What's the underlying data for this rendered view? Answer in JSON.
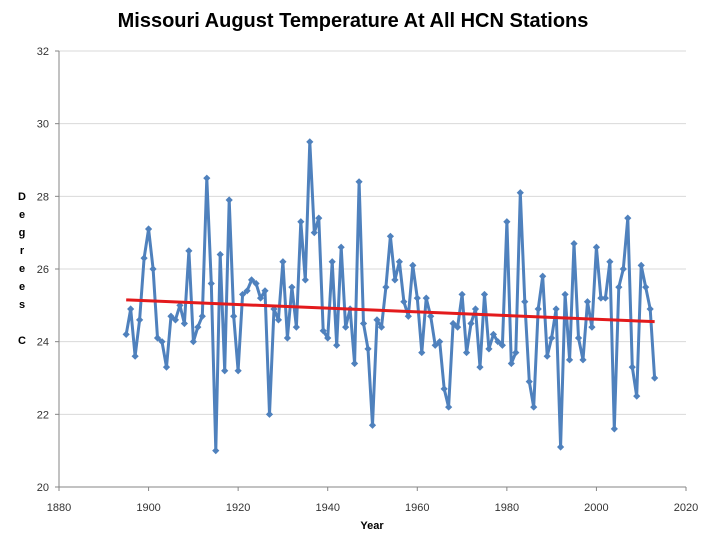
{
  "chart_data": {
    "type": "line",
    "title": "Missouri August Temperature At All HCN Stations",
    "xlabel": "Year",
    "ylabel": "Degrees C",
    "ylabel_letters": [
      "D",
      "e",
      "g",
      "r",
      "e",
      "e",
      "s",
      "",
      "C"
    ],
    "xlim": [
      1880,
      2020
    ],
    "ylim": [
      20,
      32
    ],
    "xticks": [
      1880,
      1900,
      1920,
      1940,
      1960,
      1980,
      2000,
      2020
    ],
    "yticks": [
      20,
      22,
      24,
      26,
      28,
      30,
      32
    ],
    "grid": "horizontal",
    "colors": {
      "series": "#4F81BD",
      "trend": "#E31A1C",
      "grid": "#D9D9D9",
      "axis": "#868686"
    },
    "series": [
      {
        "x": [
          1895,
          1896,
          1897,
          1898,
          1899,
          1900,
          1901,
          1902,
          1903,
          1904,
          1905,
          1906,
          1907,
          1908,
          1909,
          1910,
          1911,
          1912,
          1913,
          1914,
          1915,
          1916,
          1917,
          1918,
          1919,
          1920,
          1921,
          1922,
          1923,
          1924,
          1925,
          1926,
          1927,
          1928,
          1929,
          1930,
          1931,
          1932,
          1933,
          1934,
          1935,
          1936,
          1937,
          1938,
          1939,
          1940,
          1941,
          1942,
          1943,
          1944,
          1945,
          1946,
          1947,
          1948,
          1949,
          1950,
          1951,
          1952,
          1953,
          1954,
          1955,
          1956,
          1957,
          1958,
          1959,
          1960,
          1961,
          1962,
          1963,
          1964,
          1965,
          1966,
          1967,
          1968,
          1969,
          1970,
          1971,
          1972,
          1973,
          1974,
          1975,
          1976,
          1977,
          1978,
          1979,
          1980,
          1981,
          1982,
          1983,
          1984,
          1985,
          1986,
          1987,
          1988,
          1989,
          1990,
          1991,
          1992,
          1993,
          1994,
          1995,
          1996,
          1997,
          1998,
          1999,
          2000,
          2001,
          2002,
          2003,
          2004,
          2005,
          2006,
          2007,
          2008,
          2009,
          2010,
          2011,
          2012,
          2013
        ],
        "values": [
          24.2,
          24.9,
          23.6,
          24.6,
          26.3,
          27.1,
          26.0,
          24.1,
          24.0,
          23.3,
          24.7,
          24.6,
          25.0,
          24.5,
          26.5,
          24.0,
          24.4,
          24.7,
          28.5,
          25.6,
          21.0,
          26.4,
          23.2,
          27.9,
          24.7,
          23.2,
          25.3,
          25.4,
          25.7,
          25.6,
          25.2,
          25.4,
          22.0,
          24.9,
          24.6,
          26.2,
          24.1,
          25.5,
          24.4,
          27.3,
          25.7,
          29.5,
          27.0,
          27.4,
          24.3,
          24.1,
          26.2,
          23.9,
          26.6,
          24.4,
          24.9,
          23.4,
          28.4,
          24.5,
          23.8,
          21.7,
          24.6,
          24.4,
          25.5,
          26.9,
          25.7,
          26.2,
          25.1,
          24.7,
          26.1,
          25.2,
          23.7,
          25.2,
          24.7,
          23.9,
          24.0,
          22.7,
          22.2,
          24.5,
          24.4,
          25.3,
          23.7,
          24.5,
          24.9,
          23.3,
          25.3,
          23.8,
          24.2,
          24.0,
          23.9,
          27.3,
          23.4,
          23.7,
          28.1,
          25.1,
          22.9,
          22.2,
          24.9,
          25.8,
          23.6,
          24.1,
          24.9,
          21.1,
          25.3,
          23.5,
          26.7,
          24.1,
          23.5,
          25.1,
          24.4,
          26.6,
          25.2,
          25.2,
          26.2,
          21.6,
          25.5,
          26.0,
          27.4,
          23.3,
          22.5,
          26.1,
          25.5,
          24.9,
          23.0
        ]
      }
    ],
    "trend": {
      "x": [
        1895,
        2013
      ],
      "values": [
        25.15,
        24.55
      ]
    }
  }
}
